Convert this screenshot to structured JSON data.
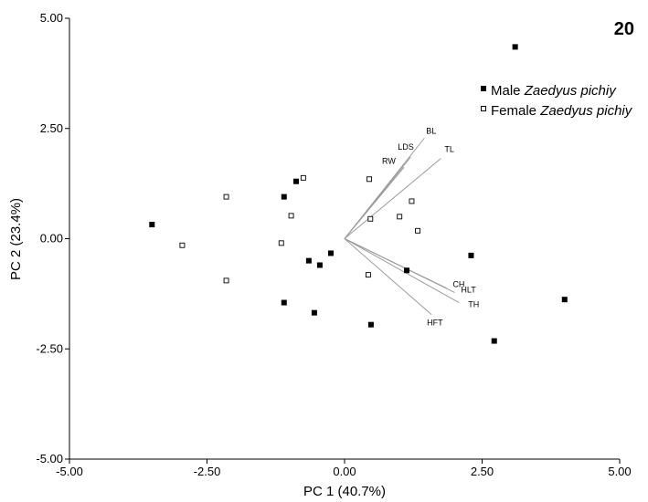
{
  "chart_data": {
    "type": "scatter",
    "panel_label": "20",
    "xlabel": "PC 1 (40.7%)",
    "ylabel": "PC 2 (23.4%)",
    "xlim": [
      -5.0,
      5.0
    ],
    "ylim": [
      -5.0,
      5.0
    ],
    "xticks": [
      -5.0,
      -2.5,
      0.0,
      2.5,
      5.0
    ],
    "yticks": [
      -5.0,
      -2.5,
      0.0,
      2.5,
      5.0
    ],
    "xtick_labels": [
      "-5.00",
      "-2.50",
      "0.00",
      "2.50",
      "5.00"
    ],
    "ytick_labels": [
      "-5.00",
      "-2.50",
      "0.00",
      "2.50",
      "5.00"
    ],
    "grid": false,
    "legend_position": "top-right",
    "series": [
      {
        "name": "Male",
        "species": "Zaedyus pichiy",
        "marker": "filled-square",
        "points": [
          [
            3.1,
            4.35
          ],
          [
            -3.5,
            0.32
          ],
          [
            -0.88,
            1.3
          ],
          [
            -1.1,
            0.95
          ],
          [
            -0.25,
            -0.33
          ],
          [
            -0.65,
            -0.5
          ],
          [
            -0.45,
            -0.6
          ],
          [
            2.3,
            -0.38
          ],
          [
            1.13,
            -0.72
          ],
          [
            -1.1,
            -1.45
          ],
          [
            -0.55,
            -1.68
          ],
          [
            0.48,
            -1.95
          ],
          [
            4.0,
            -1.38
          ],
          [
            2.72,
            -2.32
          ]
        ]
      },
      {
        "name": "Female",
        "species": "Zaedyus pichiy",
        "marker": "open-square",
        "points": [
          [
            -0.75,
            1.38
          ],
          [
            0.45,
            1.35
          ],
          [
            -2.15,
            0.95
          ],
          [
            1.22,
            0.85
          ],
          [
            -0.97,
            0.52
          ],
          [
            0.47,
            0.45
          ],
          [
            1.0,
            0.5
          ],
          [
            1.33,
            0.18
          ],
          [
            -2.95,
            -0.15
          ],
          [
            -1.15,
            -0.1
          ],
          [
            -2.15,
            -0.95
          ],
          [
            0.43,
            -0.82
          ]
        ]
      }
    ],
    "vectors": [
      {
        "label": "BL",
        "end": [
          1.45,
          2.28
        ]
      },
      {
        "label": "LDS",
        "end": [
          1.2,
          1.85
        ]
      },
      {
        "label": "TL",
        "end": [
          1.75,
          1.82
        ]
      },
      {
        "label": "RW",
        "end": [
          1.08,
          1.62
        ]
      },
      {
        "label": "CH",
        "end": [
          1.85,
          -1.12
        ]
      },
      {
        "label": "HLT",
        "end": [
          2.0,
          -1.22
        ]
      },
      {
        "label": "TH",
        "end": [
          2.08,
          -1.45
        ]
      },
      {
        "label": "HFT",
        "end": [
          1.58,
          -1.72
        ]
      }
    ]
  }
}
